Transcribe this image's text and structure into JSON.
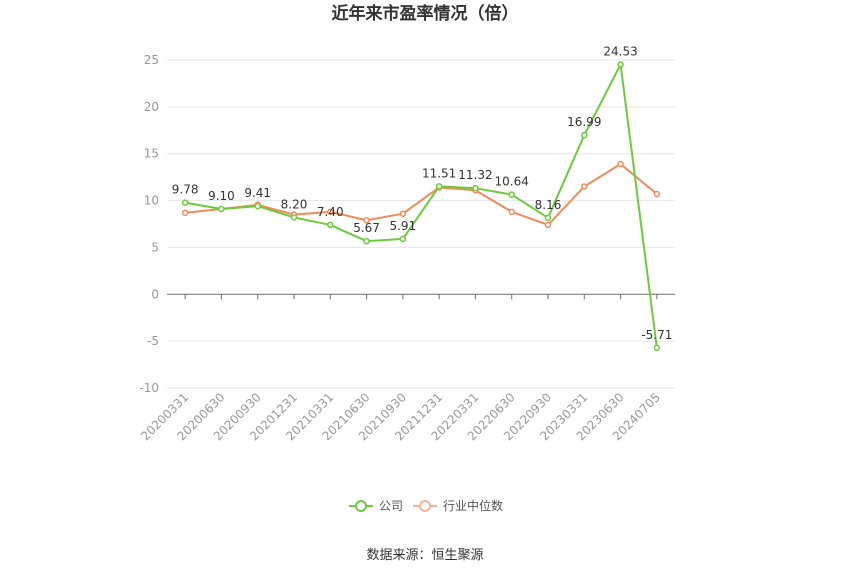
{
  "chart_data": {
    "type": "line",
    "title": "近年来市盈率情况（倍）",
    "categories": [
      "20200331",
      "20200630",
      "20200930",
      "20201231",
      "20210331",
      "20210630",
      "20210930",
      "20211231",
      "20220331",
      "20220630",
      "20220930",
      "20230331",
      "20230630",
      "20240705"
    ],
    "series": [
      {
        "name": "公司",
        "color": "#6CCB3C",
        "values": [
          9.78,
          9.1,
          9.41,
          8.2,
          7.4,
          5.67,
          5.91,
          11.51,
          11.32,
          10.64,
          8.16,
          16.99,
          24.53,
          -5.71
        ],
        "labels": [
          "9.78",
          "9.10",
          "9.41",
          "8.20",
          "7.40",
          "5.67",
          "5.91",
          "11.51",
          "11.32",
          "10.64",
          "8.16",
          "16.99",
          "24.53",
          "-5.71"
        ]
      },
      {
        "name": "行业中位数",
        "color": "#F28A5C",
        "values": [
          8.7,
          9.1,
          9.55,
          8.5,
          8.8,
          7.9,
          8.6,
          11.4,
          11.1,
          8.8,
          7.4,
          11.5,
          13.9,
          10.7
        ]
      }
    ],
    "ylim": [
      -10,
      25
    ],
    "yticks": [
      25,
      20,
      15,
      10,
      5,
      0,
      -5,
      -10
    ],
    "grid": true,
    "legend_position": "bottom"
  },
  "source_text": "数据来源：恒生聚源"
}
